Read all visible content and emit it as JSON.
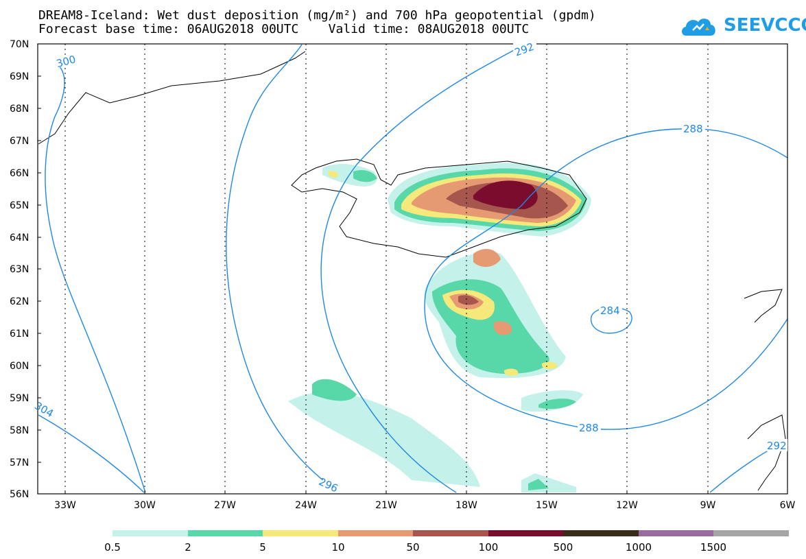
{
  "header": {
    "title_line1": "DREAM8-Iceland: Wet dust deposition (mg/m²) and 700 hPa geopotential (gpdm)",
    "title_line2": "Forecast base time: 06AUG2018 00UTC    Valid time: 08AUG2018 00UTC"
  },
  "logo": {
    "text": "SEEVCCC",
    "icon": "cloud-icon",
    "color": "#1f9ee6"
  },
  "map": {
    "lat_labels": [
      "70N",
      "69N",
      "68N",
      "67N",
      "66N",
      "65N",
      "64N",
      "63N",
      "62N",
      "61N",
      "60N",
      "59N",
      "58N",
      "57N",
      "56N"
    ],
    "lon_labels": [
      "33W",
      "30W",
      "27W",
      "24W",
      "21W",
      "18W",
      "15W",
      "12W",
      "9W",
      "6W"
    ],
    "contour_labels": [
      "300",
      "292",
      "288",
      "284",
      "288",
      "296",
      "304",
      "292"
    ],
    "contour_color": "#1e88e5",
    "coast_color": "#000000"
  },
  "colorbar": {
    "labels": [
      "0.5",
      "2",
      "5",
      "10",
      "50",
      "100",
      "500",
      "1000",
      "1500"
    ],
    "colors": [
      "#c4f1e9",
      "#58d7a8",
      "#f5e97b",
      "#e59a72",
      "#a7564e",
      "#7a0c2e",
      "#3b2b1a",
      "#9a6b9e",
      "#a6a6a6"
    ]
  }
}
